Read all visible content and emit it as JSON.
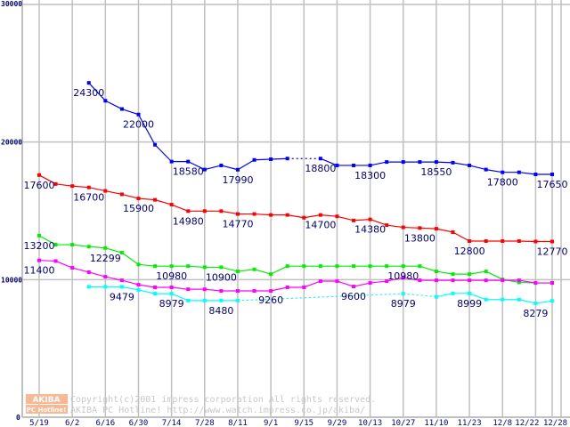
{
  "chart_data": {
    "type": "line",
    "title": "",
    "xlabel": "",
    "ylabel": "",
    "ylim": [
      0,
      30000
    ],
    "yticks": [
      "0",
      "10000",
      "20000",
      "30000"
    ],
    "grid": true,
    "x_tick_labels": [
      "5/19",
      "6/2",
      "6/16",
      "6/30",
      "7/14",
      "7/28",
      "8/11",
      "9/1",
      "9/15",
      "9/29",
      "10/13",
      "10/27",
      "11/10",
      "11/23",
      "12/8",
      "12/22",
      "12/28"
    ],
    "x_tick_indices": [
      0,
      2,
      4,
      6,
      8,
      10,
      12,
      14,
      16,
      18,
      20,
      22,
      24,
      26,
      28,
      30,
      31
    ],
    "point_count": 32,
    "series": [
      {
        "name": "blue",
        "color": "#0000ff",
        "values": [
          null,
          null,
          null,
          24300,
          23000,
          22400,
          22000,
          19800,
          18580,
          18580,
          18000,
          18300,
          17990,
          18700,
          18750,
          18800,
          null,
          18800,
          18300,
          18300,
          18300,
          18550,
          18550,
          18550,
          18550,
          18500,
          18300,
          18000,
          17800,
          17800,
          17650,
          17650
        ]
      },
      {
        "name": "red",
        "color": "#ff0000",
        "values": [
          17600,
          16950,
          16800,
          16700,
          16450,
          16200,
          15900,
          15800,
          15450,
          14980,
          14980,
          14980,
          14770,
          14770,
          14700,
          14700,
          14500,
          14700,
          14600,
          14300,
          14380,
          13960,
          13800,
          13750,
          13700,
          13450,
          12800,
          12800,
          12800,
          12800,
          12770,
          12770
        ]
      },
      {
        "name": "green",
        "color": "#00ee00",
        "values": [
          13200,
          12540,
          12540,
          12400,
          12299,
          11960,
          11100,
          10980,
          10980,
          10980,
          10900,
          10900,
          10600,
          10750,
          10400,
          10980,
          10980,
          10980,
          10980,
          10980,
          10980,
          10980,
          10980,
          10980,
          10600,
          10400,
          10400,
          10600,
          10020,
          9800,
          9760,
          9760
        ]
      },
      {
        "name": "magenta",
        "color": "#ff00ff",
        "values": [
          11400,
          11350,
          10860,
          10540,
          10210,
          9950,
          9630,
          9440,
          9440,
          9300,
          9300,
          9180,
          9180,
          9180,
          9180,
          9440,
          9440,
          9890,
          9890,
          9500,
          9760,
          9890,
          10150,
          9950,
          9950,
          9950,
          9950,
          9950,
          9950,
          9950,
          9760,
          9760
        ]
      },
      {
        "name": "cyan",
        "color": "#00ffff",
        "values": [
          null,
          null,
          null,
          9479,
          9479,
          9479,
          9250,
          8979,
          8979,
          8480,
          8480,
          8480,
          8480,
          null,
          null,
          null,
          null,
          null,
          null,
          null,
          null,
          null,
          8979,
          null,
          8750,
          8999,
          8999,
          8550,
          8550,
          8550,
          8279,
          8450
        ]
      }
    ],
    "data_labels": [
      {
        "series": 0,
        "index": 3,
        "text": "24300"
      },
      {
        "series": 0,
        "index": 6,
        "text": "22000"
      },
      {
        "series": 0,
        "index": 9,
        "text": "18580"
      },
      {
        "series": 0,
        "index": 12,
        "text": "17990"
      },
      {
        "series": 0,
        "index": 17,
        "text": "18800"
      },
      {
        "series": 0,
        "index": 20,
        "text": "18300"
      },
      {
        "series": 0,
        "index": 24,
        "text": "18550"
      },
      {
        "series": 0,
        "index": 28,
        "text": "17800"
      },
      {
        "series": 0,
        "index": 31,
        "text": "17650"
      },
      {
        "series": 1,
        "index": 0,
        "text": "17600"
      },
      {
        "series": 1,
        "index": 3,
        "text": "16700"
      },
      {
        "series": 1,
        "index": 6,
        "text": "15900"
      },
      {
        "series": 1,
        "index": 9,
        "text": "14980"
      },
      {
        "series": 1,
        "index": 12,
        "text": "14770"
      },
      {
        "series": 1,
        "index": 17,
        "text": "14700"
      },
      {
        "series": 1,
        "index": 20,
        "text": "14380"
      },
      {
        "series": 1,
        "index": 23,
        "text": "13800"
      },
      {
        "series": 1,
        "index": 26,
        "text": "12800"
      },
      {
        "series": 1,
        "index": 31,
        "text": "12770"
      },
      {
        "series": 2,
        "index": 0,
        "text": "13200"
      },
      {
        "series": 2,
        "index": 4,
        "text": "12299"
      },
      {
        "series": 2,
        "index": 8,
        "text": "10980"
      },
      {
        "series": 2,
        "index": 11,
        "text": "10900"
      },
      {
        "series": 2,
        "index": 22,
        "text": "10980"
      },
      {
        "series": 3,
        "index": 0,
        "text": "11400"
      },
      {
        "series": 3,
        "index": 19,
        "text": "9600"
      },
      {
        "series": 4,
        "index": 5,
        "text": "9479"
      },
      {
        "series": 4,
        "index": 8,
        "text": "8979"
      },
      {
        "series": 4,
        "index": 11,
        "text": "8480"
      },
      {
        "series": 4,
        "index": 14,
        "text": "9260"
      },
      {
        "series": 4,
        "index": 22,
        "text": "8979"
      },
      {
        "series": 4,
        "index": 26,
        "text": "8999"
      },
      {
        "series": 4,
        "index": 30,
        "text": "8279"
      }
    ]
  },
  "watermark": {
    "logo_top": "AKIBA",
    "logo_bottom": "PC Hotline!",
    "line1": "Copyright(c)2001 impress corporation All rights reserved.",
    "line2": "AKIBA PC Hotline!  http://www.watch.impress.co.jp/akiba/"
  }
}
